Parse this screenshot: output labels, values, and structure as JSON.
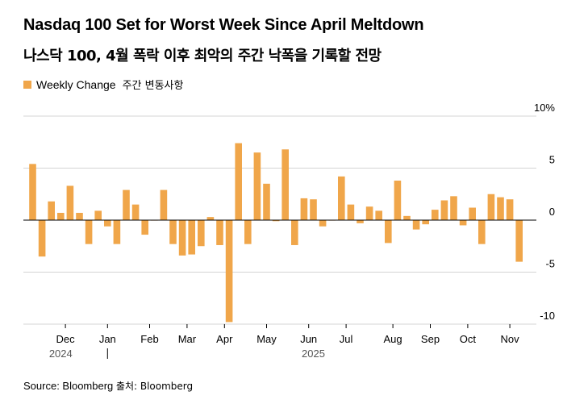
{
  "chart_data": {
    "type": "bar",
    "title": "Nasdaq 100 Set for Worst Week Since April Meltdown",
    "subtitle": "나스닥 100, 4월 폭락 이후 최악의 주간 낙폭을 기록할 전망",
    "legend": [
      {
        "label": "Weekly Change",
        "label_kr": "주간 변동사항",
        "color": "#f0a64a"
      }
    ],
    "legend_position": "top-left",
    "ylim": [
      -10,
      10
    ],
    "y_ticks": [
      10,
      5,
      0,
      -5,
      -10
    ],
    "y_tick_labels": [
      "10%",
      "5",
      "0",
      "-5",
      "-10"
    ],
    "grid": true,
    "x_ticks": [
      {
        "label": "Dec",
        "x": 3.5
      },
      {
        "label": "Jan",
        "x": 8
      },
      {
        "label": "Feb",
        "x": 12.5
      },
      {
        "label": "Mar",
        "x": 16.5
      },
      {
        "label": "Apr",
        "x": 20.5
      },
      {
        "label": "May",
        "x": 25
      },
      {
        "label": "Jun",
        "x": 29.5
      },
      {
        "label": "Jul",
        "x": 33.5
      },
      {
        "label": "Aug",
        "x": 38.5
      },
      {
        "label": "Sep",
        "x": 42.5
      },
      {
        "label": "Oct",
        "x": 46.5
      },
      {
        "label": "Nov",
        "x": 51
      }
    ],
    "year_labels": [
      {
        "label": "2024",
        "x": 3
      },
      {
        "label": "2025",
        "x": 30
      }
    ],
    "series": [
      {
        "name": "Weekly Change",
        "color": "#f0a64a",
        "values": [
          5.4,
          -3.5,
          1.8,
          0.7,
          3.3,
          0.7,
          -2.3,
          0.9,
          -0.6,
          -2.3,
          2.9,
          1.5,
          -1.4,
          0.0,
          2.9,
          -2.3,
          -3.4,
          -3.3,
          -2.5,
          0.3,
          -2.4,
          -9.8,
          7.4,
          -2.3,
          6.5,
          3.5,
          -0.1,
          6.8,
          -2.4,
          2.1,
          2.0,
          -0.6,
          0.0,
          4.2,
          1.5,
          -0.3,
          1.3,
          0.9,
          -2.2,
          3.8,
          0.4,
          -0.9,
          -0.4,
          1.0,
          1.9,
          2.3,
          -0.5,
          1.2,
          -2.3,
          2.5,
          2.2,
          2.0,
          -4.0
        ]
      }
    ]
  },
  "source": {
    "text": "Source: Bloomberg",
    "text_kr": "출처: Bloomberg"
  }
}
